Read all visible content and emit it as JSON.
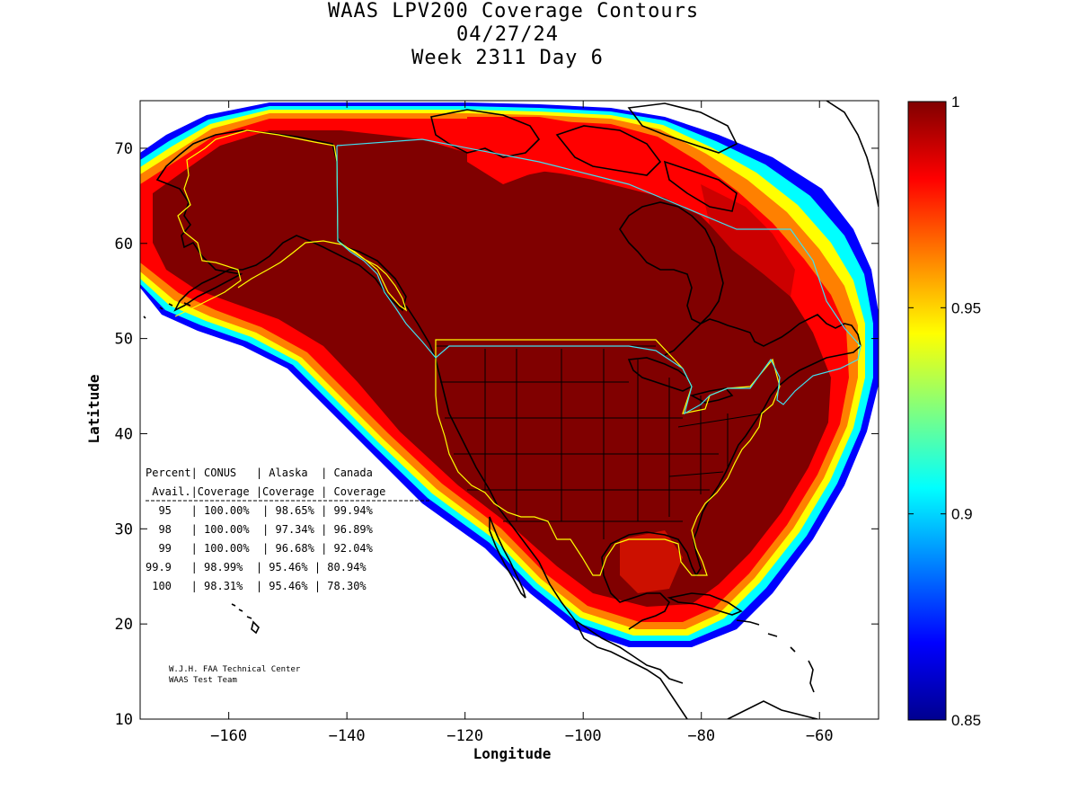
{
  "title": {
    "line1": "WAAS LPV200 Coverage Contours",
    "line2": "04/27/24",
    "line3": "Week 2311 Day 6"
  },
  "axes": {
    "xlabel": "Longitude",
    "ylabel": "Latitude",
    "xlim": [
      -175,
      -50
    ],
    "ylim": [
      10,
      75
    ],
    "xticks": [
      -160,
      -140,
      -120,
      -100,
      -80,
      -60
    ],
    "yticks": [
      10,
      20,
      30,
      40,
      50,
      60,
      70
    ]
  },
  "colorbar": {
    "range": [
      0.85,
      1
    ],
    "ticks": [
      "1",
      "0.95",
      "0.9",
      "0.85"
    ],
    "tick_values": [
      1,
      0.95,
      0.9,
      0.85
    ],
    "colormap": "jet"
  },
  "coverage_table": {
    "header1": "Percent| CONUS   | Alaska  | Canada",
    "header2": " Avail.|Coverage |Coverage | Coverage",
    "rows": [
      "  95   | 100.00%  | 98.65% | 99.94%",
      "  98   | 100.00%  | 97.34% | 96.89%",
      "  99   | 100.00%  | 96.68% | 92.04%",
      "99.9   | 98.99%  | 95.46% | 80.94%",
      " 100   | 98.31%  | 95.46% | 78.30%"
    ]
  },
  "credit": {
    "line1": "W.J.H. FAA Technical Center",
    "line2": "WAAS Test Team"
  },
  "colors": {
    "max": "#800000",
    "red": "#ff0000",
    "orange": "#ff8000",
    "yellow": "#ffff00",
    "cyan": "#00ffff",
    "blue": "#0000ff",
    "min": "#00008f",
    "us_border": "#ffff00",
    "canada_border": "#40e0f0"
  },
  "map_layers": {
    "coverage": "availability-contours",
    "coastline": "coastline",
    "states": "us-state-lines"
  }
}
